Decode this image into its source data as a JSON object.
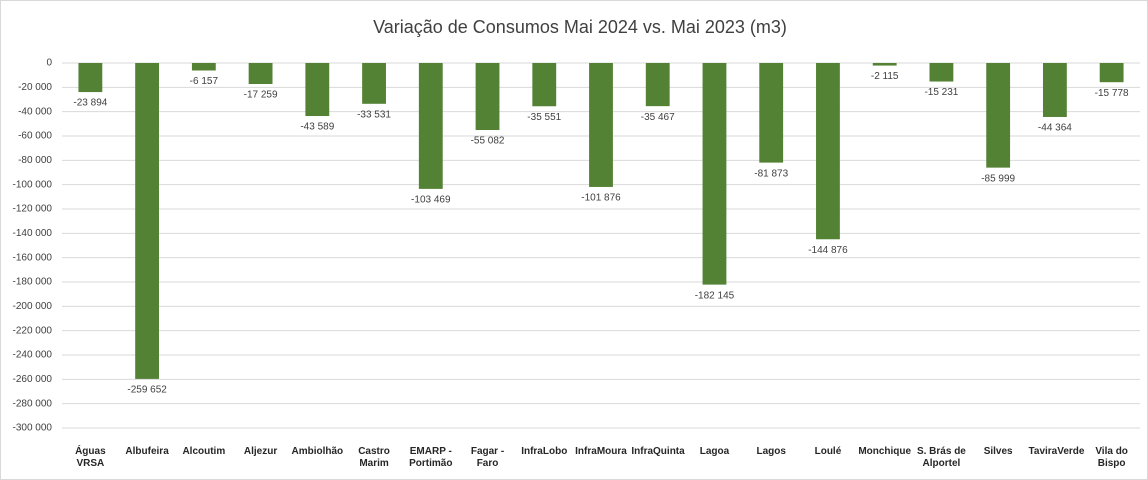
{
  "chart_data": {
    "type": "bar",
    "title": "Variação de Consumos Mai 2024 vs. Mai 2023 (m3)",
    "categories": [
      "Águas VRSA",
      "Albufeira",
      "Alcoutim",
      "Aljezur",
      "Ambiolhão",
      "Castro Marim",
      "EMARP - Portimão",
      "Fagar - Faro",
      "InfraLobo",
      "InfraMoura",
      "InfraQuinta",
      "Lagoa",
      "Lagos",
      "Loulé",
      "Monchique",
      "S. Brás de Alportel",
      "Silves",
      "TaviraVerde",
      "Vila do Bispo"
    ],
    "values": [
      -23894,
      -259652,
      -6157,
      -17259,
      -43589,
      -33531,
      -103469,
      -55082,
      -35551,
      -101876,
      -35467,
      -182145,
      -81873,
      -144876,
      -2115,
      -15231,
      -85999,
      -44364,
      -15778
    ],
    "value_labels": [
      "-23 894",
      "-259 652",
      "-6 157",
      "-17 259",
      "-43 589",
      "-33 531",
      "-103 469",
      "-55 082",
      "-35 551",
      "-101 876",
      "-35 467",
      "-182 145",
      "-81 873",
      "-144 876",
      "-2 115",
      "-15 231",
      "-85 999",
      "-44 364",
      "-15 778"
    ],
    "color": "#548235",
    "ylim": [
      -300000,
      0
    ],
    "yticks": [
      0,
      {
        "value": -20000,
        "label": "-20 000"
      },
      {
        "value": -40000,
        "label": "-40 000"
      },
      {
        "value": -60000,
        "label": "-60 000"
      },
      {
        "value": -80000,
        "label": "-80 000"
      },
      {
        "value": -100000,
        "label": "-100 000"
      },
      {
        "value": -120000,
        "label": "-120 000"
      },
      {
        "value": -140000,
        "label": "-140 000"
      },
      {
        "value": -160000,
        "label": "-160 000"
      },
      {
        "value": -180000,
        "label": "-180 000"
      },
      {
        "value": -200000,
        "label": "-200 000"
      },
      {
        "value": -220000,
        "label": "-220 000"
      },
      {
        "value": -240000,
        "label": "-240 000"
      },
      {
        "value": -260000,
        "label": "-260 000"
      },
      {
        "value": -280000,
        "label": "-280 000"
      },
      {
        "value": -300000,
        "label": "-300 000"
      }
    ],
    "grid": true
  }
}
